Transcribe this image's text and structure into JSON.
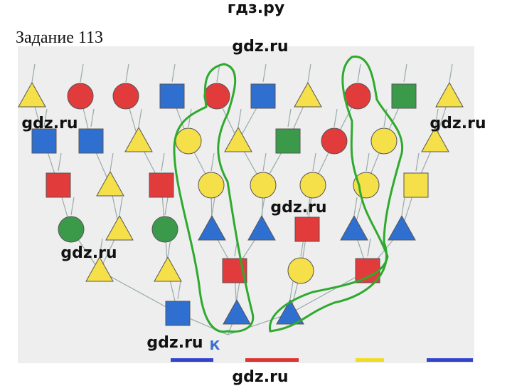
{
  "header": {
    "site": "гдз.ру",
    "title": "Задание 113"
  },
  "diagram": {
    "root_label": "К"
  },
  "watermarks": [
    "gdz.ru",
    "gdz.ru",
    "gdz.ru",
    "gdz.ru",
    "gdz.ru",
    "gdz.ru",
    "gdz.ru"
  ]
}
